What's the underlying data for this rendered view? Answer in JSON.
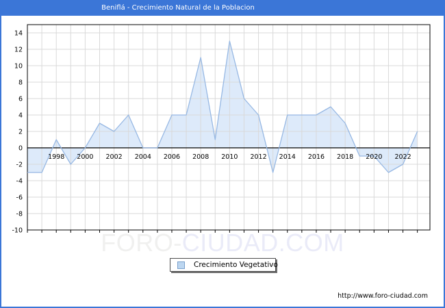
{
  "window": {
    "title": "Beniflá - Crecimiento Natural de la Poblacion"
  },
  "chart_data": {
    "type": "area",
    "title": "Beniflá - Crecimiento Natural de la Poblacion",
    "series_name": "Crecimiento Vegetativo",
    "x": [
      1996,
      1997,
      1998,
      1999,
      2000,
      2001,
      2002,
      2003,
      2004,
      2005,
      2006,
      2007,
      2008,
      2009,
      2010,
      2011,
      2012,
      2013,
      2014,
      2015,
      2016,
      2017,
      2018,
      2019,
      2020,
      2021,
      2022,
      2023
    ],
    "values": [
      -3,
      -3,
      1,
      -2,
      0,
      3,
      2,
      4,
      0,
      0,
      4,
      4,
      11,
      1,
      13,
      6,
      4,
      -3,
      4,
      4,
      4,
      5,
      3,
      -1,
      -1,
      -3,
      -2,
      2
    ],
    "baseline": 0,
    "xlim": [
      1996,
      2023.87
    ],
    "ylim": [
      -10,
      15
    ],
    "xticks": [
      1998,
      2000,
      2002,
      2004,
      2006,
      2008,
      2010,
      2012,
      2014,
      2016,
      2018,
      2020,
      2022
    ],
    "yticks": [
      14,
      12,
      10,
      8,
      6,
      4,
      2,
      0,
      -2,
      -4,
      -6,
      -8,
      -10
    ],
    "grid": true,
    "legend_position": "bottom-center",
    "colors": {
      "line": "#97b8e3",
      "fill": "#ddeafa",
      "grid": "#d9d9d9",
      "axis": "#000000"
    }
  },
  "legend": {
    "label": "Crecimiento Vegetativo"
  },
  "watermark": {
    "part1": "FORO-",
    "part2": "CIUDAD.COM"
  },
  "footer": {
    "url": "http://www.foro-ciudad.com"
  },
  "theme": {
    "frame_color": "#3b76d7",
    "title_text_color": "#ffffff",
    "marker_fill": "#bcd6f0",
    "marker_border": "#7aa0cc",
    "watermark1": "#f0f0ef",
    "watermark2": "#eaebf8"
  }
}
